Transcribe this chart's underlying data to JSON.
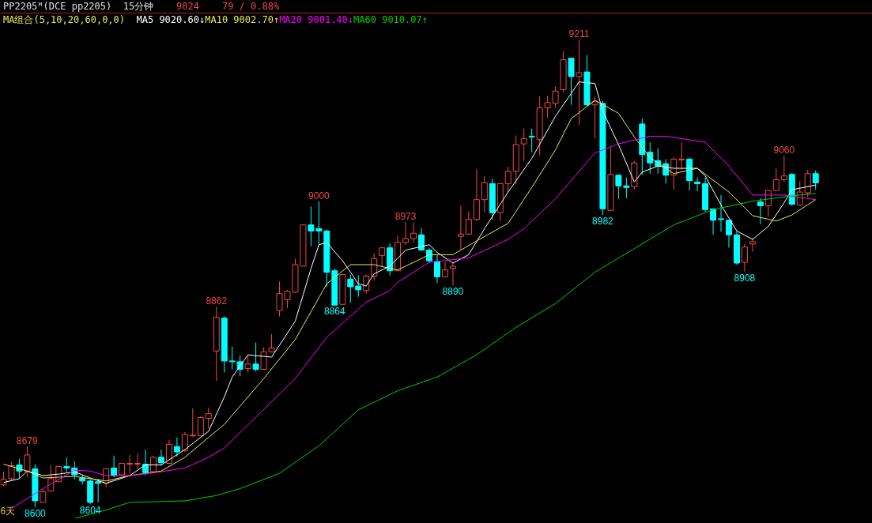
{
  "chart_data": {
    "type": "candlestick",
    "title": "PP2205ᴹ(DCE pp2205)",
    "subtitle": "15分钟",
    "xlabel": "6天",
    "legend_title": "MA组合(5,10,20,60,0,0)",
    "annotations": [
      "9024",
      "79 / 0.88%",
      {
        "text": "8679",
        "y": 8679
      },
      {
        "text": "8600",
        "y": 8600
      },
      {
        "text": "8604",
        "y": 8604
      },
      {
        "text": "8862",
        "y": 8862
      },
      {
        "text": "9000",
        "y": 9000
      },
      {
        "text": "8864",
        "y": 8864
      },
      {
        "text": "8973",
        "y": 8973
      },
      {
        "text": "8890",
        "y": 8890
      },
      {
        "text": "9211",
        "y": 9211
      },
      {
        "text": "8982",
        "y": 8982
      },
      {
        "text": "8908",
        "y": 8908
      },
      {
        "text": "9060",
        "y": 9060
      }
    ],
    "categories": [
      null,
      null,
      null,
      null,
      null,
      null,
      null,
      null,
      null,
      null,
      null,
      null,
      null,
      null,
      null,
      null,
      null,
      null,
      null,
      null,
      null,
      null,
      null,
      null,
      null,
      null,
      null,
      null,
      null,
      null,
      null,
      null,
      null,
      null,
      null,
      null,
      null,
      null,
      null,
      null,
      null,
      null,
      null,
      null,
      null,
      null,
      null,
      null,
      null,
      null,
      null,
      null,
      null,
      null,
      null,
      null,
      null,
      null,
      null,
      null,
      null,
      null,
      null,
      null,
      null,
      null,
      null,
      null,
      null,
      null,
      null,
      null,
      null,
      null,
      null,
      null,
      null,
      null,
      null,
      null,
      null,
      null,
      null,
      null,
      null,
      null,
      null,
      null,
      null,
      null,
      null,
      null,
      null,
      null,
      null,
      null,
      null,
      null,
      null,
      null,
      null,
      null,
      null,
      null
    ],
    "ohlc": [
      [
        8629,
        8646,
        8627,
        8636
      ],
      [
        8637,
        8659,
        8634,
        8654
      ],
      [
        8655,
        8663,
        8637,
        8647
      ],
      [
        8647,
        8679,
        8639,
        8668
      ],
      [
        8650,
        8656,
        8600,
        8608
      ],
      [
        8606,
        8623,
        8606,
        8620
      ],
      [
        8621,
        8655,
        8620,
        8637
      ],
      [
        8633,
        8654,
        8633,
        8653
      ],
      [
        8653,
        8665,
        8646,
        8651
      ],
      [
        8651,
        8660,
        8636,
        8642
      ],
      [
        8638,
        8642,
        8629,
        8634
      ],
      [
        8634,
        8636,
        8604,
        8606
      ],
      [
        8633,
        8637,
        8606,
        8631
      ],
      [
        8631,
        8651,
        8626,
        8650
      ],
      [
        8651,
        8667,
        8639,
        8641
      ],
      [
        8642,
        8658,
        8641,
        8657
      ],
      [
        8656,
        8668,
        8644,
        8657
      ],
      [
        8656,
        8670,
        8649,
        8657
      ],
      [
        8656,
        8675,
        8641,
        8645
      ],
      [
        8646,
        8667,
        8645,
        8665
      ],
      [
        8665,
        8675,
        8654,
        8658
      ],
      [
        8657,
        8688,
        8656,
        8682
      ],
      [
        8679,
        8691,
        8666,
        8672
      ],
      [
        8674,
        8698,
        8672,
        8695
      ],
      [
        8693,
        8729,
        8692,
        8694
      ],
      [
        8693,
        8719,
        8693,
        8717
      ],
      [
        8716,
        8730,
        8703,
        8722
      ],
      [
        8804,
        8862,
        8765,
        8848
      ],
      [
        8847,
        8849,
        8776,
        8791
      ],
      [
        8791,
        8810,
        8780,
        8790
      ],
      [
        8790,
        8798,
        8771,
        8780
      ],
      [
        8781,
        8798,
        8776,
        8787
      ],
      [
        8787,
        8815,
        8777,
        8780
      ],
      [
        8780,
        8809,
        8780,
        8803
      ],
      [
        8803,
        8826,
        8802,
        8808
      ],
      [
        8857,
        8895,
        8849,
        8879
      ],
      [
        8871,
        8884,
        8860,
        8882
      ],
      [
        8881,
        8925,
        8880,
        8917
      ],
      [
        8915,
        8969,
        8915,
        8969
      ],
      [
        8969,
        8993,
        8941,
        8961
      ],
      [
        8964,
        9000,
        8943,
        8961
      ],
      [
        8961,
        8963,
        8888,
        8907
      ],
      [
        8909,
        8912,
        8864,
        8864
      ],
      [
        8865,
        8904,
        8865,
        8904
      ],
      [
        8898,
        8904,
        8867,
        8888
      ],
      [
        8889,
        8903,
        8875,
        8884
      ],
      [
        8883,
        8904,
        8879,
        8902
      ],
      [
        8902,
        8932,
        8896,
        8925
      ],
      [
        8929,
        8939,
        8915,
        8939
      ],
      [
        8939,
        8945,
        8903,
        8909
      ],
      [
        8909,
        8955,
        8909,
        8946
      ],
      [
        8946,
        8973,
        8943,
        8951
      ],
      [
        8951,
        8972,
        8946,
        8958
      ],
      [
        8956,
        8965,
        8935,
        8936
      ],
      [
        8936,
        8939,
        8919,
        8922
      ],
      [
        8921,
        8930,
        8893,
        8901
      ],
      [
        8901,
        8920,
        8900,
        8910
      ],
      [
        8912,
        8920,
        8890,
        8915
      ],
      [
        8954,
        8994,
        8936,
        8957
      ],
      [
        8957,
        8987,
        8956,
        8976
      ],
      [
        8976,
        9042,
        8974,
        9002
      ],
      [
        9002,
        9033,
        8985,
        9024
      ],
      [
        9023,
        9029,
        8976,
        8985
      ],
      [
        8985,
        9023,
        8974,
        9023
      ],
      [
        9023,
        9045,
        9012,
        9039
      ],
      [
        9039,
        9086,
        9022,
        9074
      ],
      [
        9075,
        9095,
        9052,
        9082
      ],
      [
        9085,
        9095,
        9064,
        9084
      ],
      [
        9081,
        9137,
        9060,
        9122
      ],
      [
        9122,
        9138,
        9109,
        9129
      ],
      [
        9128,
        9150,
        9122,
        9144
      ],
      [
        9146,
        9196,
        9142,
        9185
      ],
      [
        9187,
        9187,
        9126,
        9163
      ],
      [
        9163,
        9211,
        9100,
        9168
      ],
      [
        9169,
        9191,
        9124,
        9126
      ],
      [
        9126,
        9137,
        9082,
        9130
      ],
      [
        9128,
        9131,
        8982,
        8990
      ],
      [
        8988,
        9070,
        8988,
        9035
      ],
      [
        9034,
        9035,
        9003,
        9020
      ],
      [
        9020,
        9031,
        9004,
        9018
      ],
      [
        9019,
        9053,
        9015,
        9050
      ],
      [
        9101,
        9108,
        9034,
        9061
      ],
      [
        9064,
        9077,
        9036,
        9050
      ],
      [
        9053,
        9069,
        9036,
        9046
      ],
      [
        9049,
        9055,
        9023,
        9034
      ],
      [
        9034,
        9057,
        9015,
        9055
      ],
      [
        9054,
        9077,
        9041,
        9055
      ],
      [
        9055,
        9057,
        9014,
        9027
      ],
      [
        9025,
        9031,
        9013,
        9023
      ],
      [
        9023,
        9031,
        8986,
        8989
      ],
      [
        8990,
        8990,
        8956,
        8975
      ],
      [
        8977,
        9008,
        8960,
        8976
      ],
      [
        8975,
        8976,
        8939,
        8956
      ],
      [
        8956,
        8961,
        8917,
        8919
      ],
      [
        8920,
        8944,
        8908,
        8940
      ],
      [
        8944,
        8952,
        8934,
        8947
      ],
      [
        8999,
        9004,
        8970,
        8994
      ],
      [
        8994,
        9014,
        8980,
        9014
      ],
      [
        9014,
        9043,
        9014,
        9028
      ],
      [
        9028,
        9060,
        9025,
        9033
      ],
      [
        9035,
        9037,
        8994,
        8996
      ],
      [
        8995,
        9026,
        8995,
        9012
      ],
      [
        9011,
        9041,
        9005,
        9036
      ],
      [
        9036,
        9040,
        9015,
        9024
      ]
    ],
    "colors": [
      "#f04848",
      "#f04848",
      "#00ffff",
      "#f04848",
      "#00ffff",
      "#f04848",
      "#f04848",
      "#f04848",
      "#00ffff",
      "#00ffff",
      "#00ffff",
      "#00ffff",
      "#00ffff",
      "#f04848",
      "#00ffff",
      "#f04848",
      "#f04848",
      "#f04848",
      "#00ffff",
      "#f04848",
      "#00ffff",
      "#f04848",
      "#00ffff",
      "#f04848",
      "#f04848",
      "#f04848",
      "#f04848",
      "#f04848",
      "#00ffff",
      "#00ffff",
      "#00ffff",
      "#f04848",
      "#00ffff",
      "#f04848",
      "#f04848",
      "#f04848",
      "#f04848",
      "#f04848",
      "#f04848",
      "#00ffff",
      "#00ffff",
      "#00ffff",
      "#00ffff",
      "#f04848",
      "#00ffff",
      "#00ffff",
      "#f04848",
      "#f04848",
      "#f04848",
      "#00ffff",
      "#f04848",
      "#f04848",
      "#f04848",
      "#00ffff",
      "#00ffff",
      "#00ffff",
      "#f04848",
      "#f04848",
      "#f04848",
      "#f04848",
      "#f04848",
      "#f04848",
      "#00ffff",
      "#f04848",
      "#f04848",
      "#f04848",
      "#f04848",
      "#00ffff",
      "#f04848",
      "#f04848",
      "#f04848",
      "#f04848",
      "#00ffff",
      "#f04848",
      "#00ffff",
      "#f04848",
      "#00ffff",
      "#f04848",
      "#00ffff",
      "#00ffff",
      "#f04848",
      "#00ffff",
      "#00ffff",
      "#00ffff",
      "#00ffff",
      "#f04848",
      "#f04848",
      "#00ffff",
      "#00ffff",
      "#00ffff",
      "#00ffff",
      "#00ffff",
      "#00ffff",
      "#00ffff",
      "#f04848",
      "#f04848",
      "#00ffff",
      "#f04848",
      "#f04848",
      "#f04848",
      "#00ffff",
      "#f04848",
      "#f04848",
      "#00ffff"
    ],
    "series": [
      {
        "type": "line",
        "name": "MA5 9020.60↓",
        "color": "#ffffff",
        "values": [
          8632,
          null,
          8637,
          8647,
          null,
          8641,
          null,
          8643,
          null,
          8646,
          null,
          8638,
          null,
          8631,
          null,
          null,
          8641,
          null,
          8655,
          null,
          8655,
          null,
          null,
          8675,
          null,
          null,
          8699,
          null,
          8744,
          8770,
          null,
          8799,
          null,
          null,
          8796,
          null,
          null,
          8843,
          null,
          8912,
          8943,
          8946,
          null,
          8922,
          null,
          8892,
          8889,
          8905,
          null,
          8915,
          null,
          8936,
          null,
          null,
          8943,
          8933,
          null,
          8919,
          null,
          8930,
          null,
          8964,
          null,
          null,
          9012,
          null,
          null,
          9056,
          null,
          null,
          9111,
          null,
          null,
          9156,
          null,
          9154,
          9118,
          null,
          9074,
          null,
          9025,
          9038,
          null,
          9046,
          null,
          9043,
          null,
          null,
          9043,
          9033,
          null,
          8995,
          null,
          8961,
          null,
          8950,
          null,
          8967,
          null,
          8998,
          9015,
          null,
          null,
          9021
        ]
      },
      {
        "type": "line",
        "name": "MA10 9002.70↑",
        "color": "#e8e85a",
        "values": [
          8656,
          null,
          null,
          8647,
          null,
          8638,
          null,
          null,
          null,
          8640,
          null,
          null,
          null,
          8634,
          null,
          null,
          8641,
          null,
          null,
          null,
          8647,
          null,
          null,
          8665,
          null,
          null,
          8691,
          null,
          8708,
          null,
          null,
          null,
          null,
          8768,
          null,
          null,
          null,
          8819,
          null,
          null,
          null,
          8892,
          null,
          null,
          8917,
          null,
          null,
          8917,
          null,
          8912,
          8910,
          null,
          null,
          null,
          8930,
          null,
          null,
          8930,
          null,
          null,
          8948,
          null,
          null,
          null,
          8971,
          null,
          null,
          9018,
          null,
          null,
          9067,
          null,
          9108,
          null,
          null,
          9132,
          null,
          null,
          9115,
          null,
          9084,
          null,
          9057,
          null,
          null,
          9036,
          null,
          null,
          9043,
          null,
          null,
          null,
          9012,
          null,
          null,
          8981,
          null,
          null,
          8974,
          null,
          8982,
          null,
          null,
          9002
        ]
      },
      {
        "type": "line",
        "name": "MA20 9001.40↓",
        "color": "#ff00ff",
        "values": [
          null,
          8598,
          null,
          null,
          null,
          8624,
          null,
          null,
          null,
          8648,
          null,
          8647,
          null,
          8641,
          null,
          null,
          8641,
          null,
          null,
          null,
          8646,
          null,
          null,
          8651,
          null,
          null,
          8665,
          null,
          8677,
          null,
          null,
          null,
          null,
          null,
          null,
          null,
          null,
          8768,
          null,
          null,
          null,
          8822,
          null,
          null,
          null,
          null,
          8868,
          null,
          null,
          8883,
          8894,
          null,
          null,
          null,
          8920,
          null,
          null,
          null,
          null,
          8926,
          null,
          null,
          null,
          null,
          8950,
          null,
          8964,
          null,
          null,
          null,
          9003,
          null,
          null,
          null,
          null,
          9063,
          null,
          null,
          9075,
          null,
          null,
          null,
          9085,
          null,
          9085,
          null,
          null,
          null,
          null,
          9077,
          null,
          null,
          9046,
          null,
          null,
          9008,
          null,
          null,
          null,
          9008,
          null,
          null,
          null,
          9002
        ]
      },
      {
        "type": "line",
        "name": "MA60 9010.07↑",
        "color": "#00d000",
        "values": [
          null,
          null,
          null,
          null,
          null,
          null,
          null,
          null,
          null,
          8585,
          null,
          null,
          null,
          8596,
          null,
          null,
          8606,
          null,
          null,
          null,
          null,
          null,
          null,
          8608,
          null,
          null,
          null,
          8615,
          null,
          null,
          8624,
          null,
          null,
          null,
          null,
          8644,
          null,
          null,
          null,
          null,
          8680,
          null,
          null,
          null,
          null,
          8727,
          null,
          null,
          null,
          null,
          8752,
          null,
          null,
          null,
          null,
          8770,
          null,
          null,
          null,
          null,
          8799,
          null,
          null,
          null,
          null,
          8835,
          null,
          null,
          null,
          null,
          8866,
          null,
          null,
          null,
          null,
          8907,
          null,
          null,
          null,
          null,
          8938,
          null,
          null,
          null,
          null,
          8969,
          null,
          null,
          null,
          null,
          8989,
          null,
          null,
          null,
          null,
          9000,
          null,
          null,
          null,
          null,
          9007,
          null,
          null,
          9010
        ]
      }
    ],
    "grid": false,
    "legend": "top",
    "tick_labels": false,
    "marker": "none",
    "line_style": "solid"
  }
}
